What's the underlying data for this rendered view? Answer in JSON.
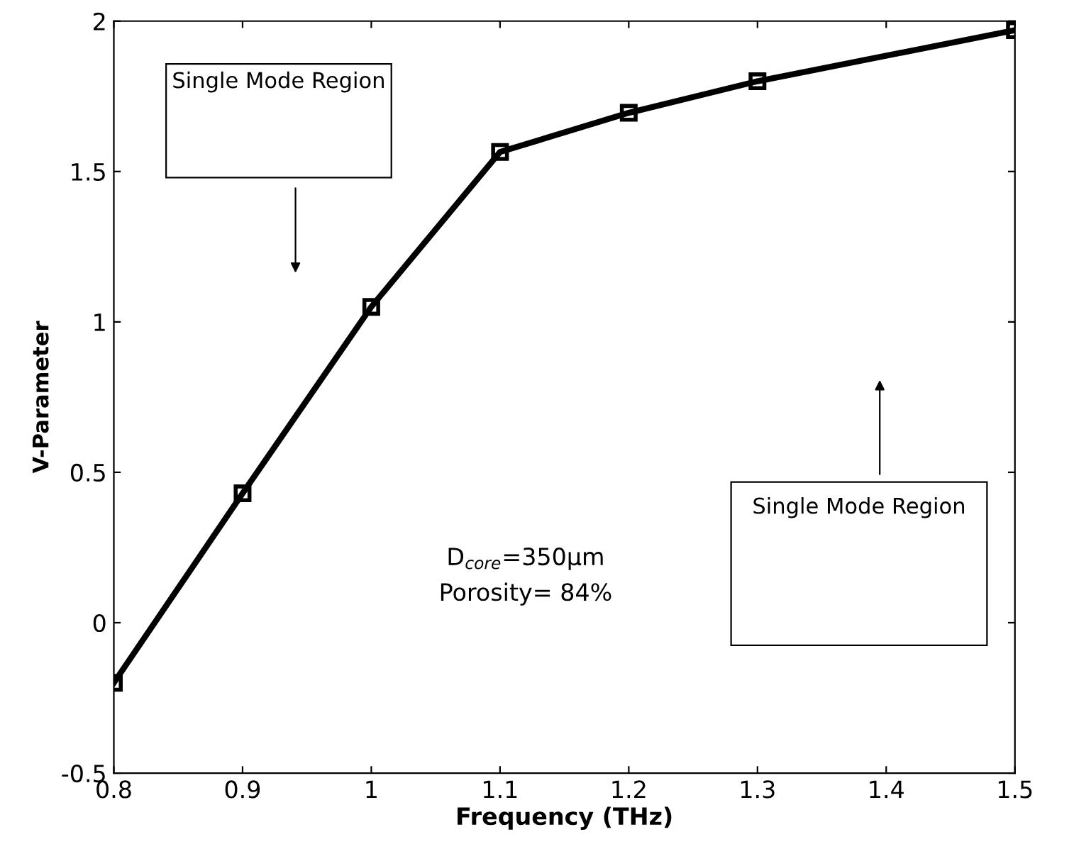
{
  "chart_data": {
    "type": "line",
    "xlabel": "Frequency (THz)",
    "ylabel": "V-Parameter",
    "x": [
      0.8,
      0.9,
      1.0,
      1.1,
      1.2,
      1.3,
      1.5
    ],
    "series": [
      {
        "color": "#000000",
        "values": [
          -0.2,
          0.43,
          1.05,
          1.565,
          1.695,
          1.8,
          1.97
        ]
      }
    ],
    "marker": "square",
    "line_style": "solid",
    "grid": false,
    "legend": false,
    "xlim": [
      0.8,
      1.5
    ],
    "xticks": [
      0.8,
      0.9,
      1,
      1.1,
      1.2,
      1.3,
      1.4,
      1.5
    ],
    "ylim": [
      -0.5,
      2
    ],
    "yticks": [
      -0.5,
      0,
      0.5,
      1,
      1.5,
      2
    ],
    "annotations": [
      "Single Mode Region",
      "Single Mode Region",
      "D$_{core}$=350μm",
      "Porosity= 84%"
    ]
  }
}
